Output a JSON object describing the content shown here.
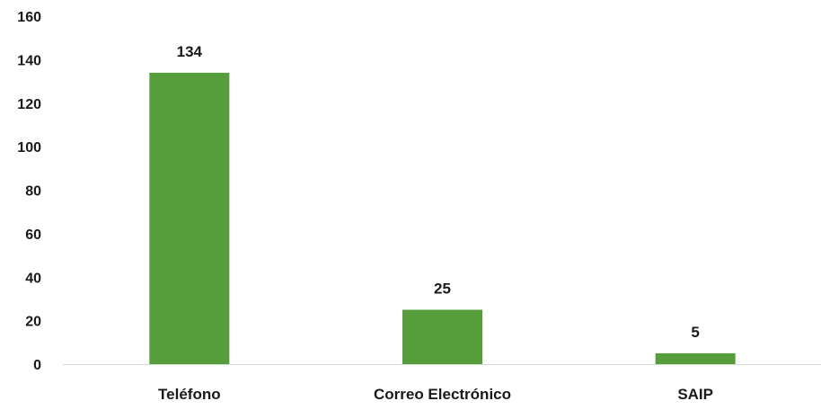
{
  "chart_data": {
    "type": "bar",
    "categories": [
      "Teléfono",
      "Correo Electrónico",
      "SAIP"
    ],
    "values": [
      134,
      25,
      5
    ],
    "data_labels": [
      "134",
      "25",
      "5"
    ],
    "title": "",
    "xlabel": "",
    "ylabel": "",
    "ylim": [
      0,
      160
    ],
    "yticks": [
      0,
      20,
      40,
      60,
      80,
      100,
      120,
      140,
      160
    ],
    "grid": false,
    "legend": "none",
    "bar_color": "#559E3B",
    "axis_color": "#d9d9d9"
  }
}
